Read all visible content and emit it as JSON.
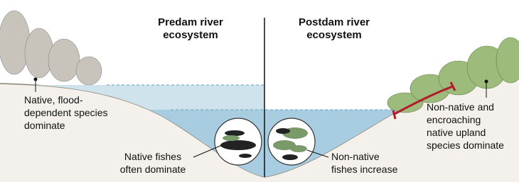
{
  "predam": {
    "lines": [
      "Predam river",
      "ecosystem"
    ]
  },
  "postdam": {
    "lines": [
      "Postdam river",
      "ecosystem"
    ]
  },
  "left_bank": {
    "lines": [
      "Native, flood-",
      "dependent species",
      "dominate"
    ]
  },
  "left_fish": {
    "lines": [
      "Native fishes",
      "often dominate"
    ]
  },
  "right_fish": {
    "lines": [
      "Non-native",
      "fishes increase"
    ]
  },
  "right_bank": {
    "lines": [
      "Non-native and",
      "encroaching",
      "native upland",
      "species dominate"
    ]
  }
}
